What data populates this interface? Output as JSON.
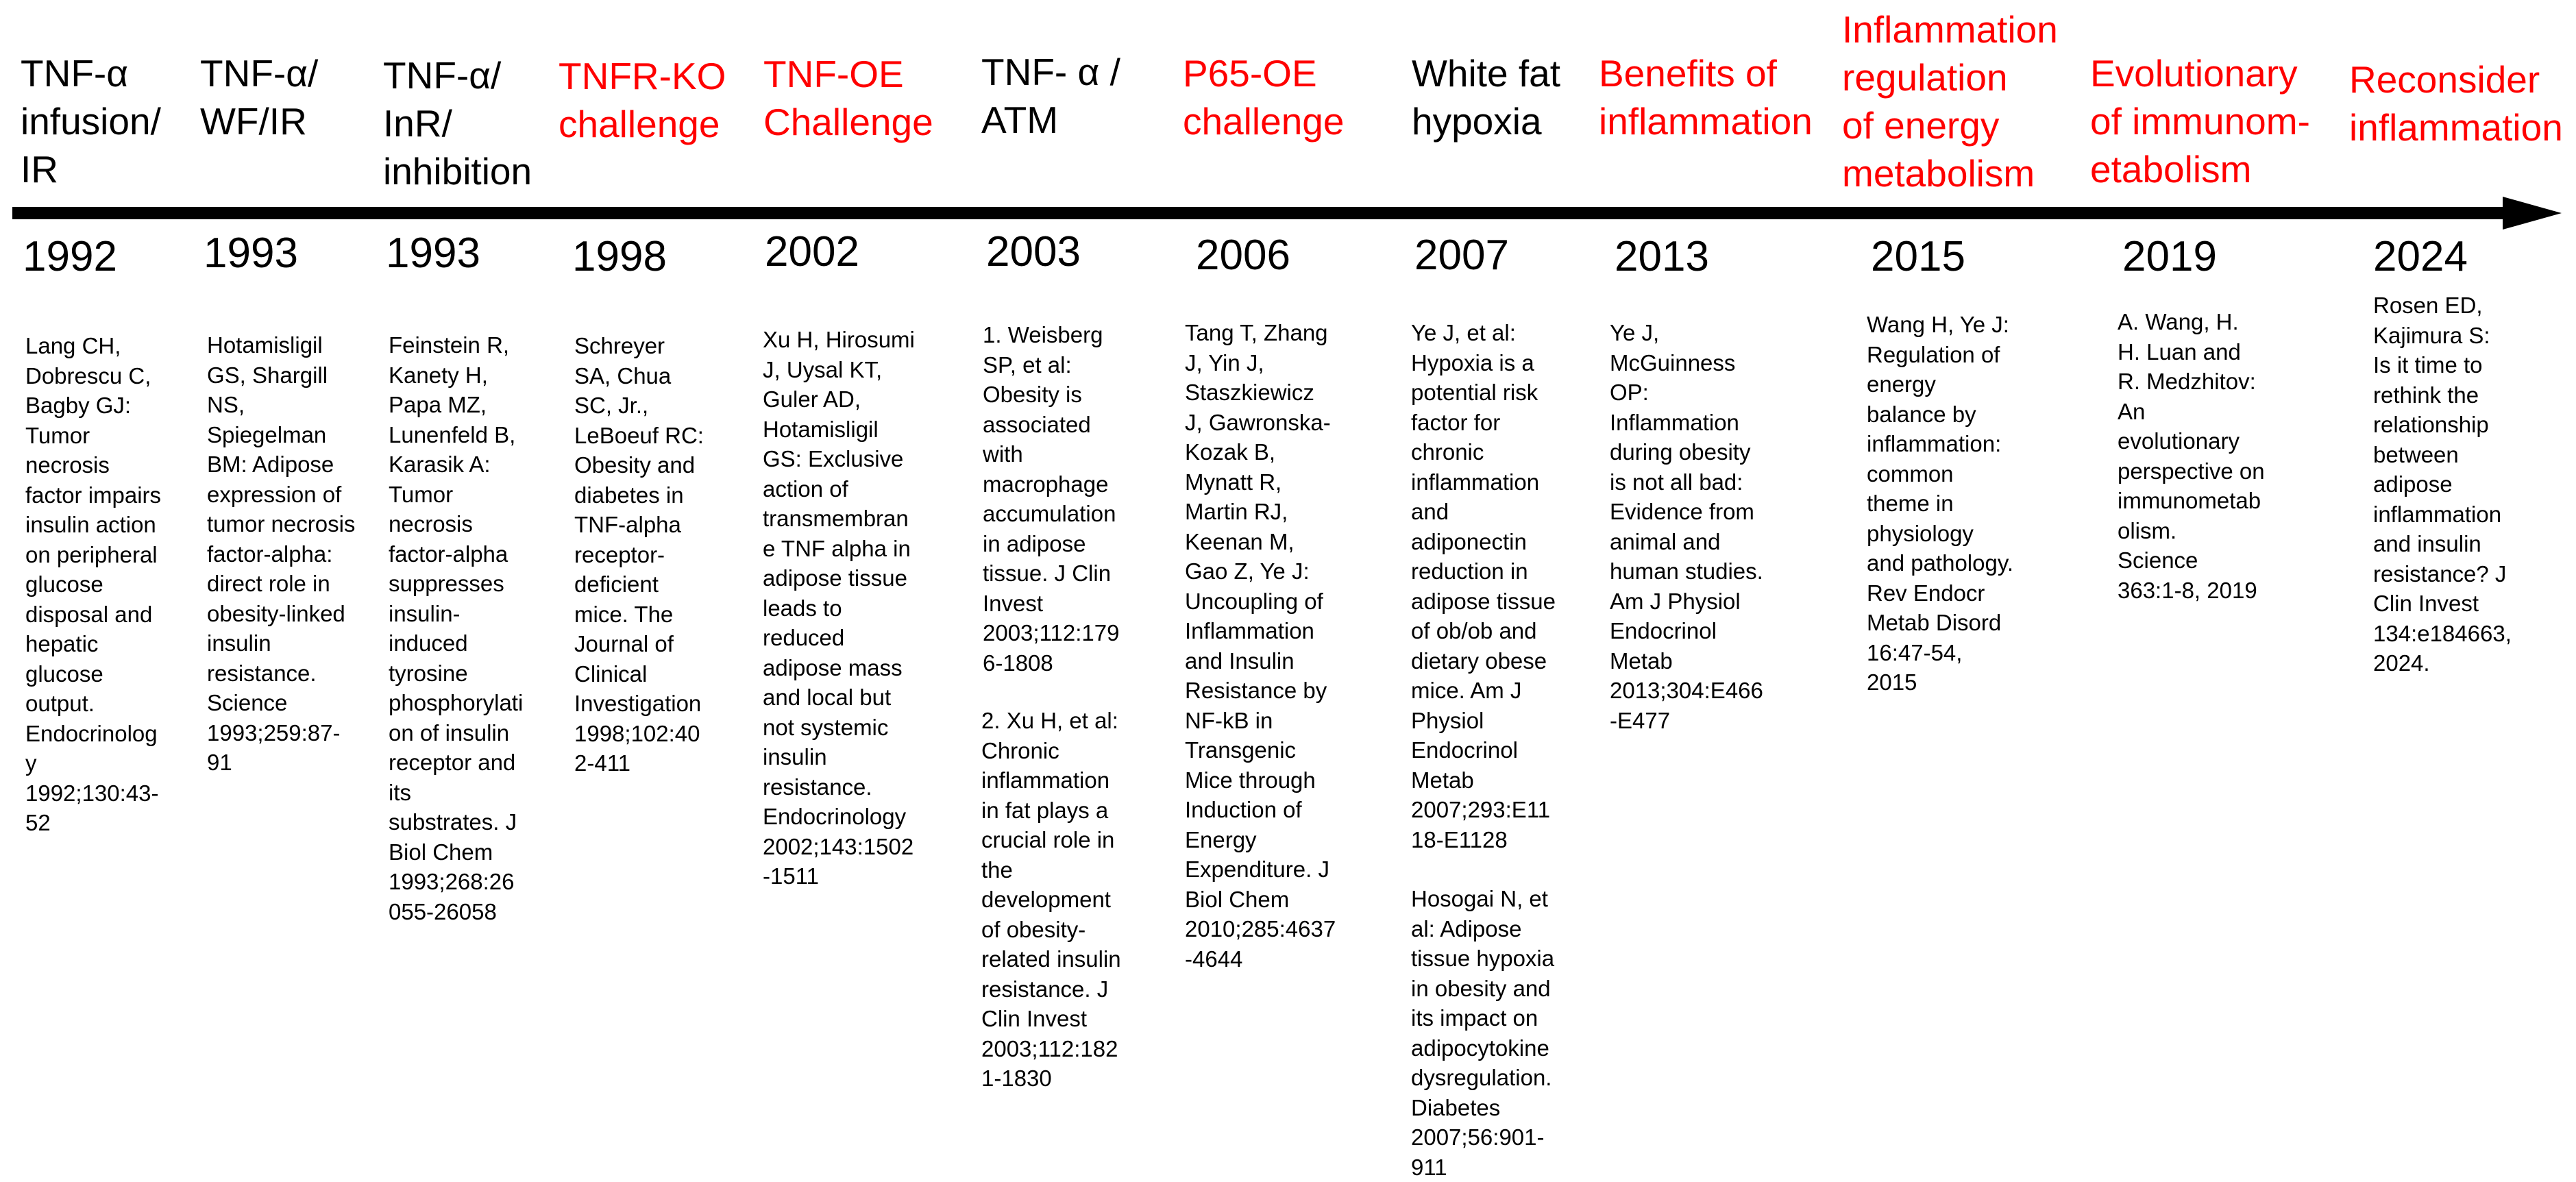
{
  "colors": {
    "black": "#000000",
    "red": "#ff0000"
  },
  "milestones": [
    {
      "title": "TNF-α\ninfusion/\nIR",
      "color": "#000000",
      "year": "1992",
      "reference": "Lang CH,\nDobrescu C,\nBagby GJ:\nTumor\nnecrosis\nfactor impairs\ninsulin action\non peripheral\nglucose\ndisposal and\nhepatic\nglucose\noutput.\nEndocrinolog\ny\n1992;130:43-\n52"
    },
    {
      "title": "TNF-α/\nWF/IR",
      "color": "#000000",
      "year": "1993",
      "reference": "Hotamisligil\nGS, Shargill\nNS,\nSpiegelman\nBM: Adipose\nexpression of\ntumor necrosis\nfactor-alpha:\ndirect role in\nobesity-linked\ninsulin\nresistance.\nScience\n1993;259:87-\n91"
    },
    {
      "title": "TNF-α/\nInR/\ninhibition",
      "color": "#000000",
      "year": "1993",
      "reference": "Feinstein R,\nKanety H,\nPapa MZ,\nLunenfeld B,\nKarasik A:\nTumor\nnecrosis\nfactor-alpha\nsuppresses\ninsulin-\ninduced\ntyrosine\nphosphorylati\non of insulin\nreceptor and\nits\nsubstrates. J\nBiol Chem\n1993;268:26\n055-26058"
    },
    {
      "title": "TNFR-KO\nchallenge",
      "color": "#ff0000",
      "year": "1998",
      "reference": "Schreyer\nSA, Chua\nSC, Jr.,\nLeBoeuf RC:\nObesity and\ndiabetes in\nTNF-alpha\nreceptor-\ndeficient\nmice. The\nJournal of\nClinical\nInvestigation\n1998;102:40\n2-411"
    },
    {
      "title": "TNF-OE\nChallenge",
      "color": "#ff0000",
      "year": "2002",
      "reference": "Xu H, Hirosumi\nJ, Uysal KT,\nGuler AD,\nHotamisligil\nGS: Exclusive\naction of\ntransmembran\ne TNF alpha in\nadipose tissue\nleads to\nreduced\nadipose mass\nand local but\nnot systemic\ninsulin\nresistance.\nEndocrinology\n2002;143:1502\n-1511"
    },
    {
      "title": "TNF- α /\nATM",
      "color": "#000000",
      "year": "2003",
      "reference": "1. Weisberg\nSP, et al:\nObesity is\nassociated\nwith\nmacrophage\naccumulation\nin adipose\ntissue. J Clin\nInvest\n2003;112:179\n6-1808",
      "reference2": "2. Xu H, et al:\nChronic\ninflammation\nin fat plays a\ncrucial role in\nthe\ndevelopment\nof obesity-\nrelated insulin\nresistance. J\nClin Invest\n2003;112:182\n1-1830"
    },
    {
      "title": "P65-OE\nchallenge",
      "color": "#ff0000",
      "year": "2006",
      "reference": "Tang T, Zhang\nJ, Yin J,\nStaszkiewicz\nJ, Gawronska-\nKozak B,\nMynatt R,\nMartin RJ,\nKeenan M,\nGao Z, Ye J:\nUncoupling of\nInflammation\nand Insulin\nResistance by\nNF-kB in\nTransgenic\nMice through\nInduction of\nEnergy\nExpenditure. J\nBiol Chem\n2010;285:4637\n-4644"
    },
    {
      "title": "White fat\nhypoxia",
      "color": "#000000",
      "year": "2007",
      "reference": "Ye J, et al:\nHypoxia is a\npotential risk\nfactor for\nchronic\ninflammation\nand\nadiponectin\nreduction in\nadipose tissue\nof ob/ob and\ndietary obese\nmice. Am J\nPhysiol\nEndocrinol\nMetab\n2007;293:E11\n18-E1128",
      "reference2": "Hosogai N, et\nal: Adipose\ntissue hypoxia\nin obesity and\nits impact on\nadipocytokine\ndysregulation.\nDiabetes\n2007;56:901-\n911"
    },
    {
      "title": "Benefits of\ninflammation",
      "color": "#ff0000",
      "year": "2013",
      "reference": "Ye J,\nMcGuinness\nOP:\nInflammation\nduring obesity\nis not all bad:\nEvidence from\nanimal and\nhuman studies.\nAm J Physiol\nEndocrinol\nMetab\n2013;304:E466\n-E477"
    },
    {
      "title": "Inflammation\nregulation\nof energy\nmetabolism",
      "color": "#ff0000",
      "year": "2015",
      "reference": "Wang H, Ye J:\nRegulation of\nenergy\nbalance by\ninflammation:\ncommon\ntheme in\nphysiology\nand pathology.\nRev Endocr\nMetab Disord\n16:47-54,\n2015"
    },
    {
      "title": "Evolutionary\nof immunom-\netabolism",
      "color": "#ff0000",
      "year": "2019",
      "reference": "A. Wang, H.\nH. Luan and\nR. Medzhitov:\nAn\nevolutionary\nperspective on\nimmunometab\nolism.\nScience\n363:1-8, 2019"
    },
    {
      "title": "Reconsider\ninflammation",
      "color": "#ff0000",
      "year": "2024",
      "reference": "Rosen ED,\nKajimura S:\nIs it time to\nrethink the\nrelationship\nbetween\nadipose\ninflammation\nand insulin\nresistance? J\nClin Invest\n134:e184663,\n2024."
    }
  ]
}
